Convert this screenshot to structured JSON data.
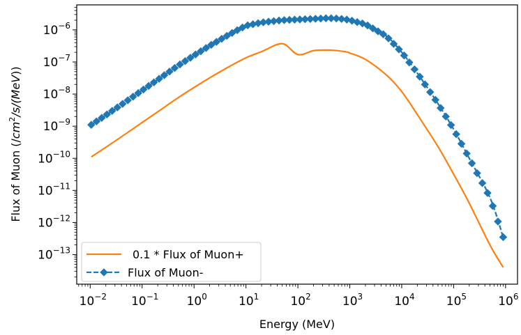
{
  "chart_data": {
    "type": "line",
    "xscale": "log",
    "yscale": "log",
    "xlabel": "Energy (MeV)",
    "ylabel": {
      "prefix": "Flux of Muon (/",
      "cm": "cm",
      "cm_exp": "2",
      "rest": "/s/(",
      "mev": "MeV",
      "suffix": "))"
    },
    "xlim": [
      0.0055,
      1700000
    ],
    "ylim": [
      1.2e-14,
      6e-06
    ],
    "xticks": [
      {
        "value": 0.01,
        "base": "10",
        "exp": "−2"
      },
      {
        "value": 0.1,
        "base": "10",
        "exp": "−1"
      },
      {
        "value": 1,
        "base": "10",
        "exp": "0"
      },
      {
        "value": 10,
        "base": "10",
        "exp": "1"
      },
      {
        "value": 100,
        "base": "10",
        "exp": "2"
      },
      {
        "value": 1000,
        "base": "10",
        "exp": "3"
      },
      {
        "value": 10000,
        "base": "10",
        "exp": "4"
      },
      {
        "value": 100000,
        "base": "10",
        "exp": "5"
      },
      {
        "value": 1000000,
        "base": "10",
        "exp": "6"
      }
    ],
    "yticks": [
      {
        "value": 1e-13,
        "base": "10",
        "exp": "−13"
      },
      {
        "value": 1e-12,
        "base": "10",
        "exp": "−12"
      },
      {
        "value": 1e-11,
        "base": "10",
        "exp": "−11"
      },
      {
        "value": 1e-10,
        "base": "10",
        "exp": "−10"
      },
      {
        "value": 1e-09,
        "base": "10",
        "exp": "−9"
      },
      {
        "value": 1e-08,
        "base": "10",
        "exp": "−8"
      },
      {
        "value": 1e-07,
        "base": "10",
        "exp": "−7"
      },
      {
        "value": 1e-06,
        "base": "10",
        "exp": "−6"
      }
    ],
    "grid": false,
    "legend_position": "lower-left",
    "series": [
      {
        "name": "0.1 * Flux of Muon+",
        "color": "#ff7f0e",
        "style": "solid",
        "marker": "none",
        "x": [
          0.0105,
          0.02,
          0.05,
          0.1,
          0.2,
          0.5,
          1,
          2,
          5,
          10,
          20,
          50,
          100,
          200,
          350,
          500,
          800,
          1000,
          2000,
          5000,
          10000,
          20000,
          50000,
          100000,
          200000,
          500000,
          900000
        ],
        "y": [
          1.1e-10,
          2.2e-10,
          6e-10,
          1.3e-09,
          2.8e-09,
          7.8e-09,
          1.6e-08,
          3.2e-08,
          7.5e-08,
          1.35e-07,
          2.1e-07,
          3.7e-07,
          1.7e-07,
          2.25e-07,
          2.35e-07,
          2.3e-07,
          2.1e-07,
          1.9e-07,
          1.2e-07,
          4e-08,
          1.2e-08,
          2.3e-09,
          2.3e-10,
          3.2e-11,
          4e-12,
          2e-13,
          4e-14
        ]
      },
      {
        "name": "Flux of Muon-",
        "color": "#1f77b4",
        "style": "dashed",
        "marker": "diamond",
        "x": [
          0.0105,
          0.02,
          0.05,
          0.1,
          0.2,
          0.5,
          1,
          2,
          5,
          10,
          20,
          50,
          100,
          200,
          350,
          500,
          800,
          1000,
          2000,
          5000,
          10000,
          20000,
          50000,
          100000,
          200000,
          500000,
          900000
        ],
        "y": [
          1.1e-09,
          2.2e-09,
          6e-09,
          1.3e-08,
          2.8e-08,
          7.8e-08,
          1.6e-07,
          3.2e-07,
          7.5e-07,
          1.35e-06,
          1.7e-06,
          2e-06,
          2.1e-06,
          2.2e-06,
          2.3e-06,
          2.3e-06,
          2.15e-06,
          2e-06,
          1.5e-06,
          6.5e-07,
          2e-07,
          4.5e-08,
          5e-09,
          8e-10,
          1e-10,
          6e-12,
          3.5e-13
        ]
      }
    ]
  }
}
